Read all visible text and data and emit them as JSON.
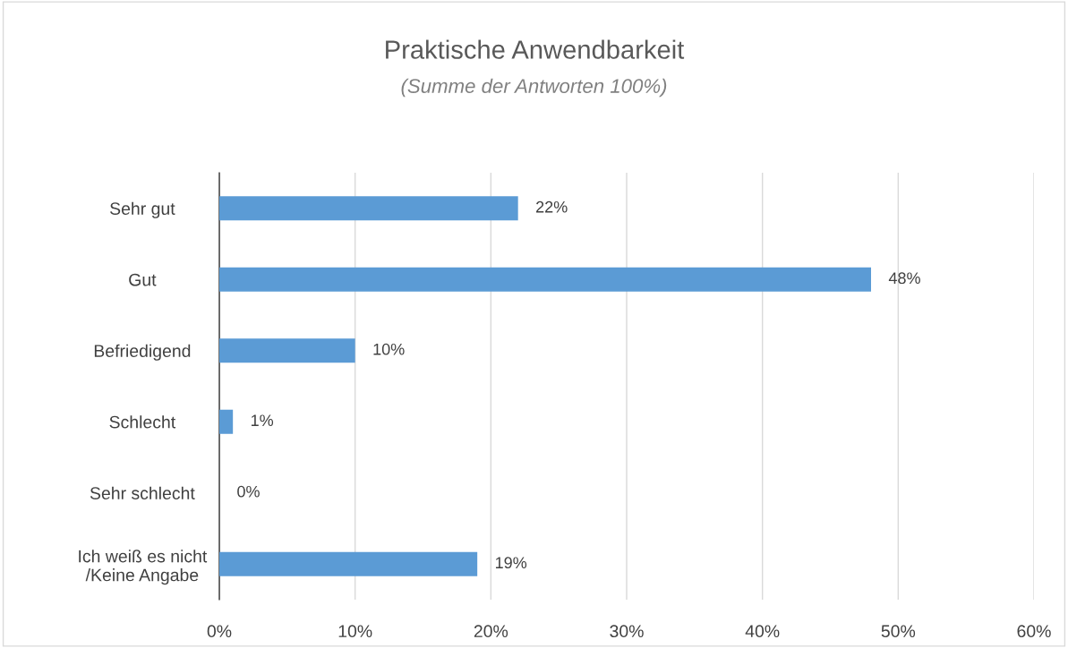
{
  "chart_data": {
    "type": "bar",
    "orientation": "horizontal",
    "title": "Praktische Anwendbarkeit",
    "subtitle": "(Summe der Antworten 100%)",
    "categories": [
      "Sehr gut",
      "Gut",
      "Befriedigend",
      "Schlecht",
      "Sehr schlecht",
      "Ich weiß es nicht\n/Keine Angabe"
    ],
    "values": [
      22,
      48,
      10,
      1,
      0,
      19
    ],
    "value_labels": [
      "22%",
      "48%",
      "10%",
      "1%",
      "0%",
      "19%"
    ],
    "color": "#5b9bd5",
    "xlim": [
      0,
      60
    ],
    "xticks": [
      {
        "value": 0,
        "label": "0%"
      },
      {
        "value": 10,
        "label": "10%"
      },
      {
        "value": 20,
        "label": "20%"
      },
      {
        "value": 30,
        "label": "30%"
      },
      {
        "value": 40,
        "label": "40%"
      },
      {
        "value": 50,
        "label": "50%"
      },
      {
        "value": 60,
        "label": "60%"
      }
    ],
    "grid": "x",
    "legend": false
  }
}
